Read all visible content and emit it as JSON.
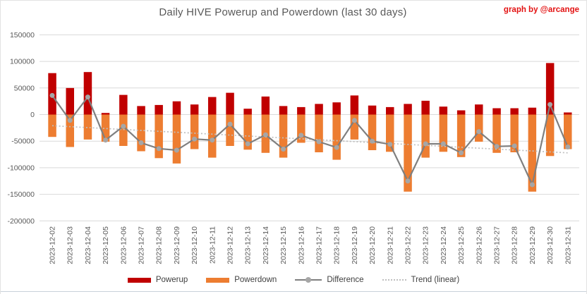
{
  "credit": "graph by @arcange",
  "chart_data": {
    "type": "bar",
    "title": "Daily HIVE Powerup and Powerdown (last 30 days)",
    "xlabel": "",
    "ylabel": "",
    "ylim": [
      -200000,
      150000
    ],
    "ytick_step": 50000,
    "yticks": [
      "150000",
      "100000",
      "50000",
      "0",
      "-50000",
      "-100000",
      "-150000",
      "-200000"
    ],
    "grid": true,
    "legend_position": "bottom",
    "x_labels_rotation_deg": 90,
    "categories": [
      "2023-12-02",
      "2023-12-03",
      "2023-12-04",
      "2023-12-05",
      "2023-12-06",
      "2023-12-07",
      "2023-12-08",
      "2023-12-09",
      "2023-12-10",
      "2023-12-11",
      "2023-12-12",
      "2023-12-13",
      "2023-12-14",
      "2023-12-15",
      "2023-12-16",
      "2023-12-17",
      "2023-12-18",
      "2023-12-19",
      "2023-12-20",
      "2023-12-21",
      "2023-12-22",
      "2023-12-23",
      "2023-12-24",
      "2023-12-25",
      "2023-12-26",
      "2023-12-27",
      "2023-12-28",
      "2023-12-29",
      "2023-12-30",
      "2023-12-31"
    ],
    "series": [
      {
        "name": "Powerup",
        "type": "bar",
        "color": "#c00000",
        "values": [
          78000,
          50000,
          80000,
          3000,
          37000,
          16000,
          18000,
          25000,
          19000,
          33000,
          41000,
          11000,
          34000,
          16000,
          14000,
          20000,
          23000,
          36000,
          17000,
          14000,
          20000,
          26000,
          15000,
          8000,
          19000,
          12000,
          12000,
          13000,
          97000,
          4000
        ]
      },
      {
        "name": "Powerdown",
        "type": "bar",
        "color": "#ed7d31",
        "values": [
          -42000,
          -61000,
          -47000,
          -51000,
          -59000,
          -69000,
          -82000,
          -92000,
          -65000,
          -81000,
          -59000,
          -66000,
          -72000,
          -81000,
          -53000,
          -71000,
          -85000,
          -47000,
          -67000,
          -70000,
          -145000,
          -81000,
          -70000,
          -80000,
          -51000,
          -72000,
          -71000,
          -145000,
          -78000,
          -65000
        ]
      },
      {
        "name": "Difference",
        "type": "line",
        "color": "#7f7f7f",
        "marker_color": "#a6a6a6",
        "values": [
          36000,
          -11000,
          33000,
          -48000,
          -22000,
          -53000,
          -64000,
          -67000,
          -46000,
          -48000,
          -18000,
          -55000,
          -38000,
          -65000,
          -39000,
          -51000,
          -62000,
          -11000,
          -50000,
          -56000,
          -125000,
          -55000,
          -55000,
          -72000,
          -32000,
          -60000,
          -59000,
          -132000,
          19000,
          -61000
        ]
      },
      {
        "name": "Trend (linear)",
        "type": "trendline",
        "color": "#bfbfbf",
        "endpoints": [
          -21000,
          -72000
        ]
      }
    ],
    "colors": {
      "grid": "#d9d9d9",
      "axis_text": "#595959",
      "title_text": "#595959",
      "legend_text": "#404040",
      "credit_text": "#e31212",
      "background": "#ffffff"
    }
  }
}
